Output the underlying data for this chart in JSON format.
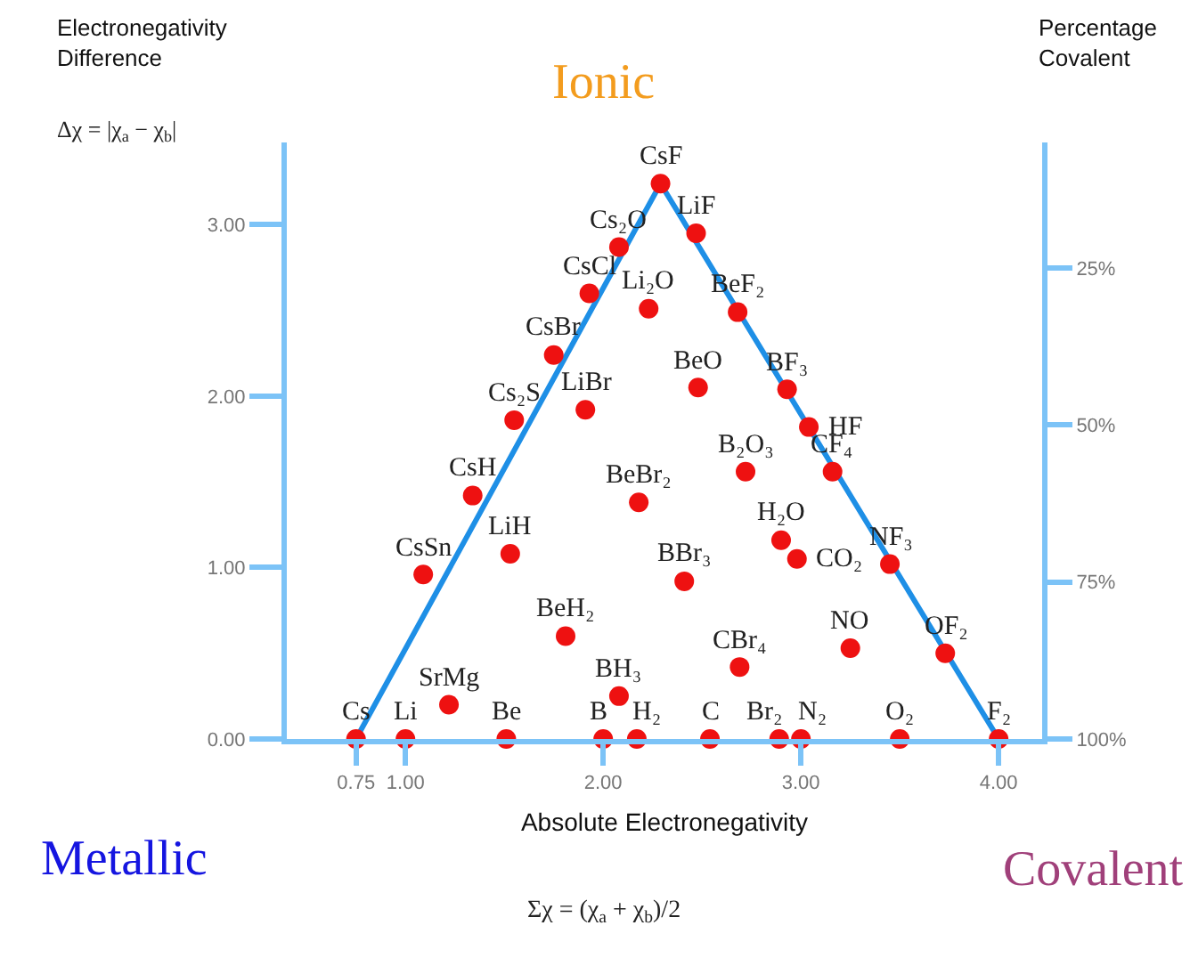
{
  "chart_data": {
    "type": "scatter",
    "xlabel": "Absolute Electronegativity",
    "ylabel": "Electronegativity Difference",
    "y2label": "Percentage Covalent",
    "annotations": [
      "Ionic",
      "Metallic",
      "Covalent",
      "Δχ = |χ$_{a}$ − χ$_{b}$|",
      "Σχ = (χ$_{a}$ + χ$_{b}$)/2",
      {
        "text": "CsF",
        "x": 2.29,
        "y": 3.24
      },
      {
        "text": "LiF",
        "x": 2.47,
        "y": 2.95
      },
      {
        "text": "Cs₂O",
        "x": 2.08,
        "y": 2.87
      },
      {
        "text": "CsCl",
        "x": 1.93,
        "y": 2.6
      },
      {
        "text": "Li₂O",
        "x": 2.23,
        "y": 2.51
      },
      {
        "text": "BeF₂",
        "x": 2.68,
        "y": 2.49
      },
      {
        "text": "CsBr",
        "x": 1.75,
        "y": 2.24
      },
      {
        "text": "BeO",
        "x": 2.48,
        "y": 2.05
      },
      {
        "text": "BF₃",
        "x": 2.93,
        "y": 2.04
      },
      {
        "text": "LiBr",
        "x": 1.91,
        "y": 1.92
      },
      {
        "text": "Cs₂S",
        "x": 1.55,
        "y": 1.86
      },
      {
        "text": "HF",
        "x": 3.04,
        "y": 1.82
      },
      {
        "text": "B₂O₃",
        "x": 2.72,
        "y": 1.56
      },
      {
        "text": "CF₄",
        "x": 3.16,
        "y": 1.56
      },
      {
        "text": "CsH",
        "x": 1.34,
        "y": 1.42
      },
      {
        "text": "BeBr₂",
        "x": 2.18,
        "y": 1.38
      },
      {
        "text": "H₂O",
        "x": 2.9,
        "y": 1.16
      },
      {
        "text": "LiH",
        "x": 1.53,
        "y": 1.08
      },
      {
        "text": "CO₂",
        "x": 2.98,
        "y": 1.05
      },
      {
        "text": "NF₃",
        "x": 3.45,
        "y": 1.02
      },
      {
        "text": "CsSn",
        "x": 1.09,
        "y": 0.96
      },
      {
        "text": "BBr₃",
        "x": 2.41,
        "y": 0.92
      },
      {
        "text": "BeH₂",
        "x": 1.81,
        "y": 0.6
      },
      {
        "text": "NO",
        "x": 3.25,
        "y": 0.53
      },
      {
        "text": "OF₂",
        "x": 3.73,
        "y": 0.5
      },
      {
        "text": "CBr₄",
        "x": 2.69,
        "y": 0.42
      },
      {
        "text": "BH₃",
        "x": 2.08,
        "y": 0.25
      },
      {
        "text": "SrMg",
        "x": 1.22,
        "y": 0.2
      },
      {
        "text": "Cs",
        "x": 0.75,
        "y": 0
      },
      {
        "text": "Li",
        "x": 1.0,
        "y": 0
      },
      {
        "text": "Be",
        "x": 1.51,
        "y": 0
      },
      {
        "text": "B",
        "x": 2.0,
        "y": 0
      },
      {
        "text": "H₂",
        "x": 2.17,
        "y": 0
      },
      {
        "text": "C",
        "x": 2.54,
        "y": 0
      },
      {
        "text": "Br₂",
        "x": 2.89,
        "y": 0
      },
      {
        "text": "N₂",
        "x": 3.0,
        "y": 0
      },
      {
        "text": "O₂",
        "x": 3.5,
        "y": 0
      },
      {
        "text": "F₂",
        "x": 4.0,
        "y": 0
      }
    ],
    "series": [
      {
        "type": "line",
        "marker": "none",
        "color": "#1e8fe6",
        "x": [
          0.75,
          2.29,
          4.0
        ],
        "values": [
          0,
          3.24,
          0
        ]
      },
      {
        "color": "#ee1111",
        "x": [
          2.29,
          2.47,
          2.08,
          1.93,
          2.23,
          2.68,
          1.75,
          2.48,
          2.93,
          1.91,
          1.55,
          3.04,
          2.72,
          3.16,
          1.34,
          2.18,
          2.9,
          1.53,
          2.98,
          3.45,
          1.09,
          2.41,
          1.81,
          3.25,
          3.73,
          2.69,
          2.08,
          1.22,
          0.75,
          1.0,
          1.51,
          2.0,
          2.17,
          2.54,
          2.89,
          3.0,
          3.5,
          4.0
        ],
        "values": [
          3.24,
          2.95,
          2.87,
          2.6,
          2.51,
          2.49,
          2.24,
          2.05,
          2.04,
          1.92,
          1.86,
          1.82,
          1.56,
          1.56,
          1.42,
          1.38,
          1.16,
          1.08,
          1.05,
          1.02,
          0.96,
          0.92,
          0.6,
          0.53,
          0.5,
          0.42,
          0.25,
          0.2,
          0,
          0,
          0,
          0,
          0,
          0,
          0,
          0,
          0,
          0
        ]
      }
    ],
    "xlim": [
      0.4,
      4.22
    ],
    "xticks": [
      0.75,
      {
        "value": 1,
        "label": "1.00"
      },
      {
        "value": 2,
        "label": "2.00"
      },
      {
        "value": 3,
        "label": "3.00"
      },
      {
        "value": 4,
        "label": "4.00"
      }
    ],
    "ylim": [
      0,
      3.48
    ],
    "yticks": [
      {
        "value": 0,
        "label": "0.00"
      },
      {
        "value": 1,
        "label": "1.00"
      },
      {
        "value": 2,
        "label": "2.00"
      },
      {
        "value": 3,
        "label": "3.00"
      }
    ],
    "y2lim": [
      100,
      5
    ],
    "y2ticks": [
      {
        "value": 25,
        "label": "25%"
      },
      {
        "value": 50,
        "label": "50%"
      },
      {
        "value": 75,
        "label": "75%"
      },
      {
        "value": 100,
        "label": "100%"
      }
    ],
    "grid": false,
    "marker": "circle",
    "line_style": "solid"
  }
}
